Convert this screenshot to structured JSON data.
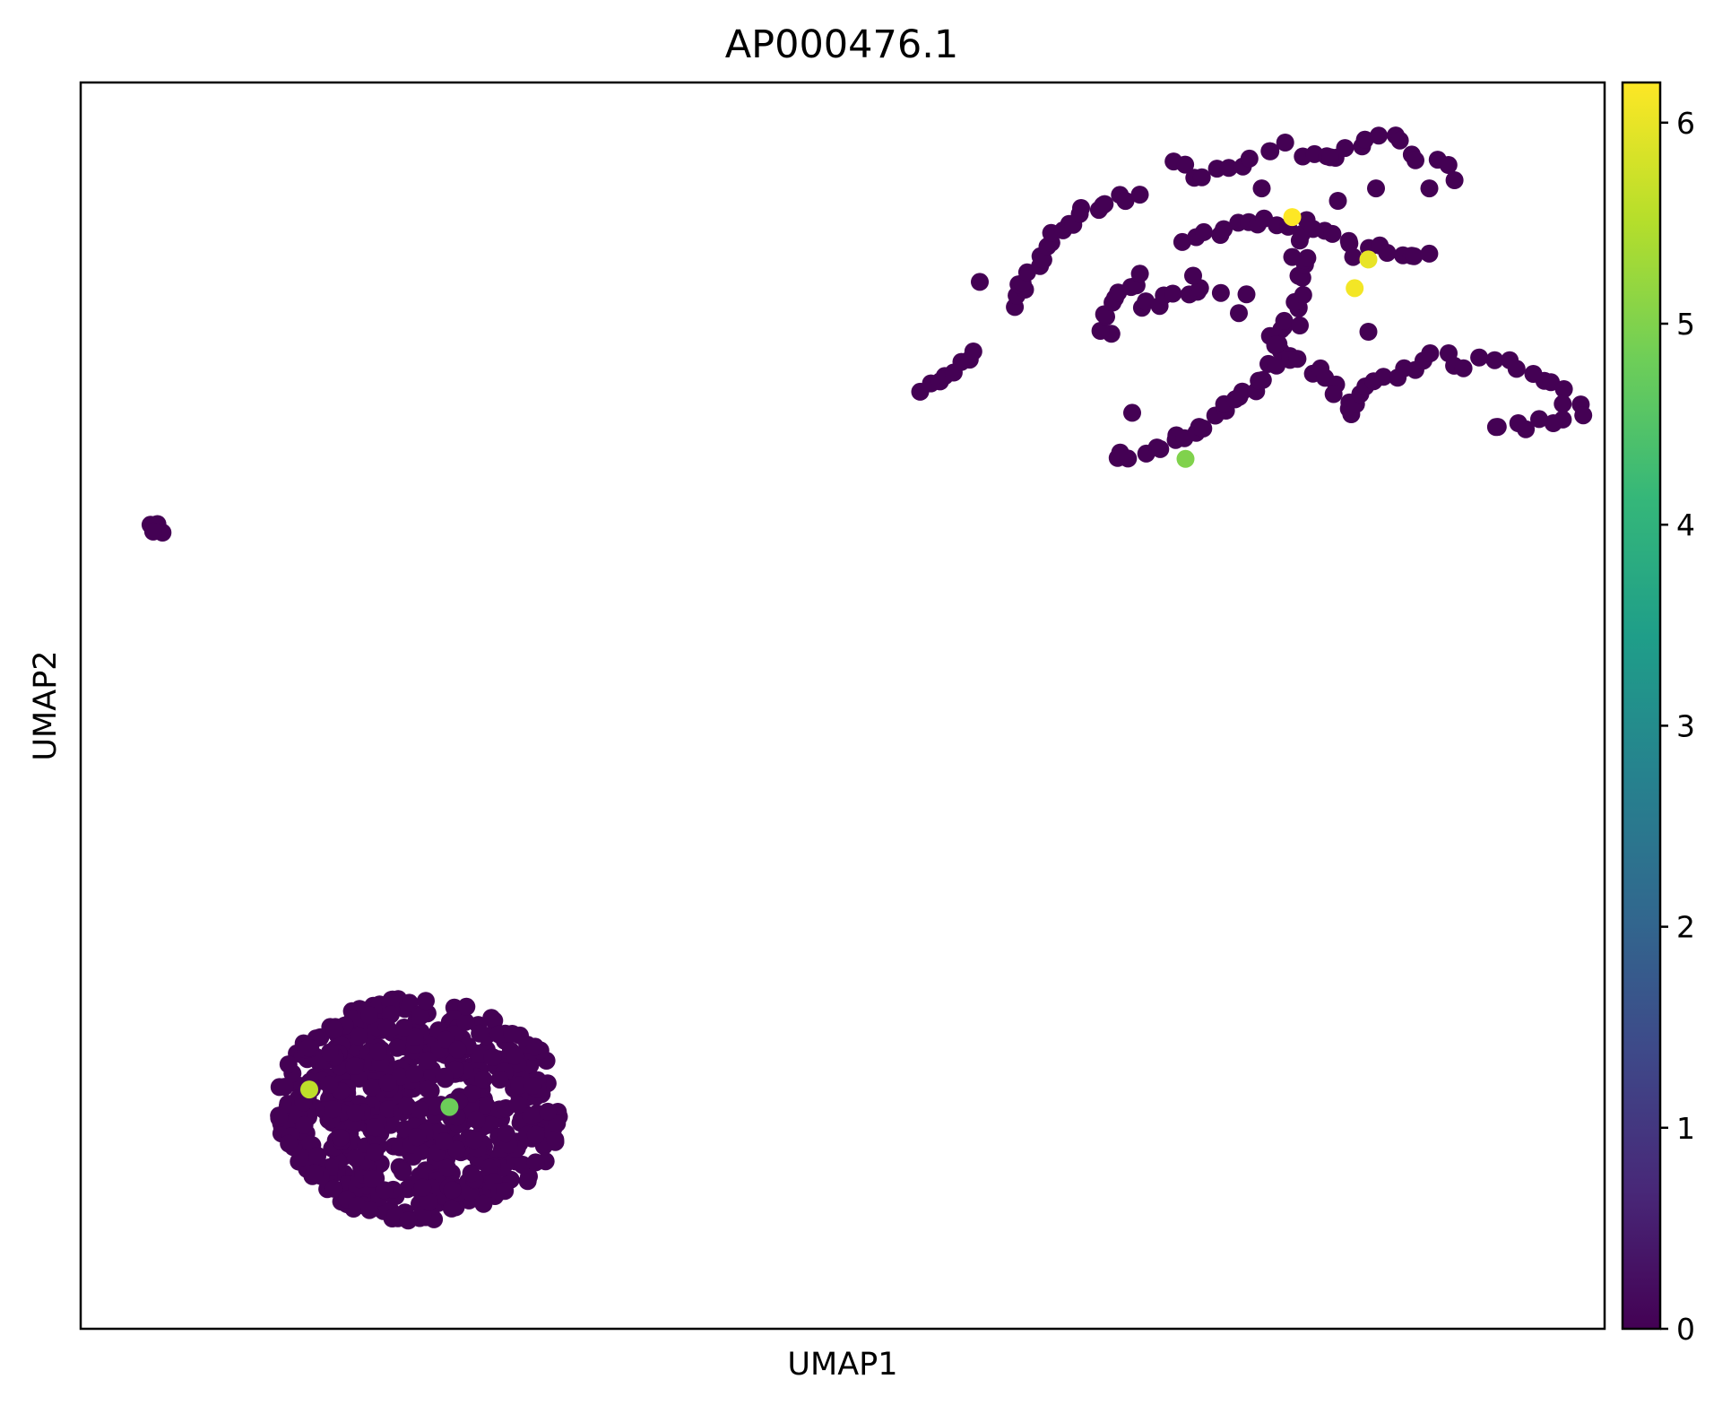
{
  "chart_data": {
    "type": "scatter",
    "title": "AP000476.1",
    "xlabel": "UMAP1",
    "ylabel": "UMAP2",
    "xlim": [
      0,
      100
    ],
    "ylim": [
      0,
      100
    ],
    "x_ticks_shown": false,
    "y_ticks_shown": false,
    "grid": false,
    "colormap": "viridis",
    "colorbar": {
      "min": 0,
      "max": 6.2,
      "ticks": [
        "0",
        "1",
        "2",
        "3",
        "4",
        "5",
        "6"
      ],
      "stops": [
        "#440154",
        "#482878",
        "#3e4989",
        "#31688e",
        "#26828e",
        "#1f9e89",
        "#35b779",
        "#6ece58",
        "#b5de2b",
        "#fde725"
      ]
    },
    "marker_color_zero": "#440154",
    "clusters": [
      {
        "name": "",
        "center": [
          22.2,
          17.6
        ],
        "radius": [
          9.4,
          9.0
        ],
        "count": 620,
        "seed": 11
      },
      {
        "name": "",
        "center": [
          5.0,
          64.2
        ],
        "radius": [
          0.6,
          0.5
        ],
        "count": 4,
        "seed": 3
      }
    ],
    "arcs": [
      {
        "points": [
          [
            55.3,
            75.4
          ],
          [
            58.5,
            78.5
          ]
        ],
        "count": 8
      },
      {
        "points": [
          [
            61.3,
            82.0
          ],
          [
            63.5,
            87.0
          ],
          [
            65.5,
            89.5
          ],
          [
            68.5,
            90.8
          ]
        ],
        "count": 22
      },
      {
        "points": [
          [
            67.2,
            79.5
          ],
          [
            67.5,
            82.5
          ],
          [
            69.5,
            84.5
          ]
        ],
        "count": 10
      },
      {
        "points": [
          [
            68.0,
            69.8
          ],
          [
            71.5,
            71.0
          ],
          [
            74.5,
            73.0
          ],
          [
            77.0,
            75.5
          ],
          [
            78.5,
            78.5
          ],
          [
            79.5,
            81.5
          ],
          [
            80.0,
            84.5
          ],
          [
            80.5,
            87.5
          ]
        ],
        "count": 40
      },
      {
        "points": [
          [
            69.5,
            82.0
          ],
          [
            72.0,
            83.0
          ],
          [
            74.5,
            83.5
          ]
        ],
        "count": 9
      },
      {
        "points": [
          [
            72.5,
            87.0
          ],
          [
            75.0,
            88.2
          ],
          [
            78.0,
            89.0
          ],
          [
            81.0,
            88.5
          ],
          [
            84.0,
            86.5
          ],
          [
            86.5,
            86.5
          ],
          [
            88.5,
            86.0
          ]
        ],
        "count": 24
      },
      {
        "points": [
          [
            78.0,
            79.3
          ],
          [
            80.0,
            77.5
          ],
          [
            82.0,
            76.0
          ],
          [
            83.5,
            73.5
          ],
          [
            85.0,
            76.0
          ],
          [
            88.0,
            77.5
          ]
        ],
        "count": 22
      },
      {
        "points": [
          [
            88.5,
            78.0
          ],
          [
            91.0,
            77.5
          ],
          [
            94.0,
            77.5
          ],
          [
            97.0,
            75.5
          ],
          [
            98.5,
            73.5
          ],
          [
            95.5,
            72.5
          ],
          [
            92.5,
            72.0
          ]
        ],
        "count": 22
      },
      {
        "points": [
          [
            71.5,
            93.5
          ],
          [
            73.5,
            92.5
          ],
          [
            76.5,
            93.5
          ],
          [
            79.0,
            94.8
          ],
          [
            81.5,
            94.0
          ],
          [
            84.0,
            94.8
          ],
          [
            86.0,
            95.8
          ],
          [
            88.0,
            94.0
          ],
          [
            90.0,
            92.5
          ]
        ],
        "count": 26
      }
    ],
    "scatter_extra": [
      [
        59.0,
        84.0
      ],
      [
        69.0,
        73.5
      ],
      [
        76.0,
        81.5
      ],
      [
        82.0,
        94.0
      ],
      [
        88.5,
        91.5
      ],
      [
        79.5,
        86.0
      ],
      [
        82.5,
        90.5
      ],
      [
        73.0,
        84.5
      ],
      [
        76.5,
        83.0
      ],
      [
        85.0,
        91.5
      ],
      [
        80.0,
        80.5
      ],
      [
        83.5,
        86.0
      ],
      [
        77.5,
        91.5
      ],
      [
        84.5,
        80.0
      ],
      [
        69.5,
        91.0
      ]
    ],
    "highlighted_points": [
      {
        "x": 79.5,
        "y": 89.2,
        "value": 6.2
      },
      {
        "x": 84.5,
        "y": 85.8,
        "value": 6.0
      },
      {
        "x": 83.6,
        "y": 83.5,
        "value": 6.1
      },
      {
        "x": 72.5,
        "y": 69.8,
        "value": 5.0
      },
      {
        "x": 15.0,
        "y": 19.2,
        "value": 5.6
      },
      {
        "x": 24.2,
        "y": 17.8,
        "value": 4.8
      }
    ]
  }
}
